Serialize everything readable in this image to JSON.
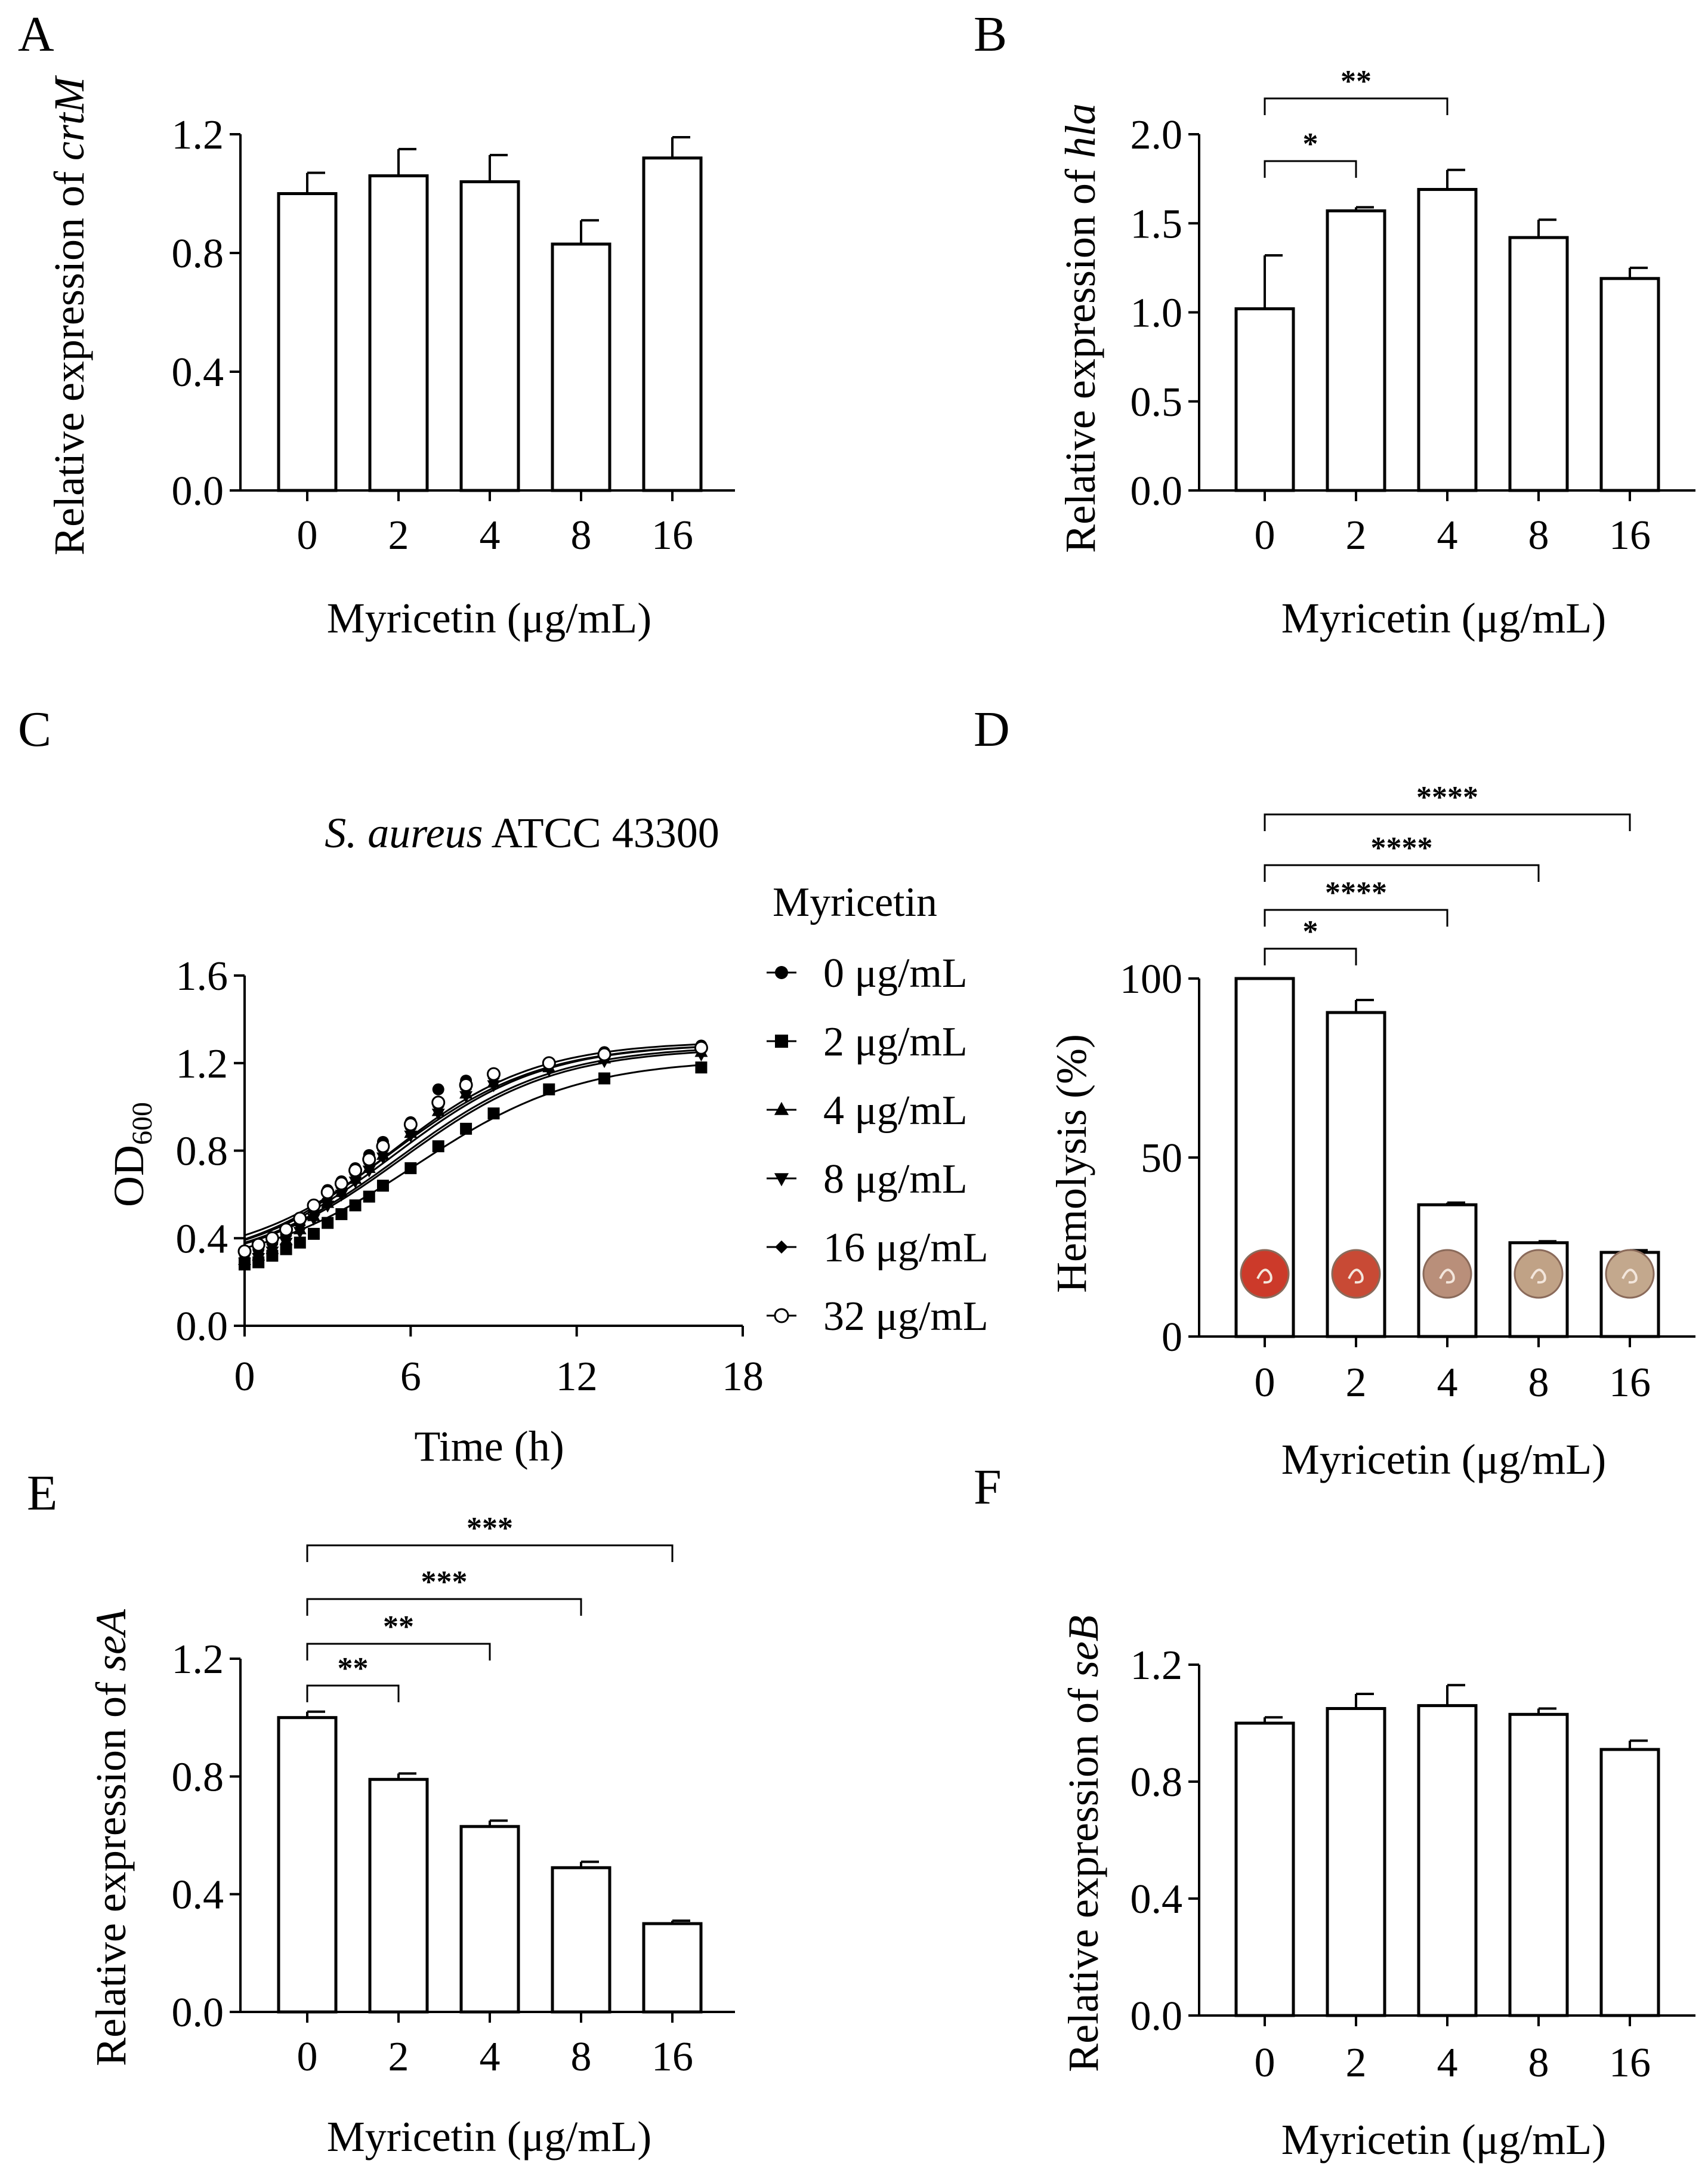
{
  "figure": {
    "panels": [
      "A",
      "B",
      "C",
      "D",
      "E",
      "F"
    ]
  },
  "chart_data": [
    {
      "panel": "A",
      "type": "bar",
      "categories": [
        "0",
        "2",
        "4",
        "8",
        "16"
      ],
      "values": [
        1.0,
        1.06,
        1.04,
        0.83,
        1.12
      ],
      "errors": [
        0.07,
        0.09,
        0.09,
        0.08,
        0.07
      ],
      "ylim": [
        0,
        1.2
      ],
      "yticks": [
        "0.0",
        "0.4",
        "0.8",
        "1.2"
      ],
      "ylabel_prefix": "Relative expression of ",
      "ylabel_gene": "crtM",
      "xlabel": "Myricetin (μg/mL)",
      "significance": []
    },
    {
      "panel": "B",
      "type": "bar",
      "categories": [
        "0",
        "2",
        "4",
        "8",
        "16"
      ],
      "values": [
        1.02,
        1.57,
        1.69,
        1.42,
        1.19
      ],
      "errors": [
        0.3,
        0.02,
        0.11,
        0.1,
        0.06
      ],
      "ylim": [
        0,
        2.0
      ],
      "yticks": [
        "0.0",
        "0.5",
        "1.0",
        "1.5",
        "2.0"
      ],
      "ylabel_prefix": "Relative expression of ",
      "ylabel_gene": "hla",
      "xlabel": "Myricetin (μg/mL)",
      "significance": [
        {
          "from": 0,
          "to": 1,
          "label": "*"
        },
        {
          "from": 0,
          "to": 2,
          "label": "**"
        }
      ]
    },
    {
      "panel": "C",
      "type": "scatter",
      "title_italic": "S. aureus",
      "title_rest": " ATCC 43300",
      "xlabel": "Time (h)",
      "ylabel_main": "OD",
      "ylabel_sub": "600",
      "xlim": [
        0,
        18
      ],
      "ylim": [
        0,
        1.6
      ],
      "xticks": [
        "0",
        "6",
        "12",
        "18"
      ],
      "yticks": [
        "0.0",
        "0.4",
        "0.8",
        "1.2",
        "1.6"
      ],
      "legend_title": "Myricetin",
      "x": [
        0,
        0.5,
        1,
        1.5,
        2,
        2.5,
        3,
        3.5,
        4,
        4.5,
        5,
        6,
        7,
        8,
        9,
        11,
        13,
        16.5
      ],
      "series": [
        {
          "name": "0 μg/mL",
          "marker": "circle",
          "values": [
            0.33,
            0.35,
            0.38,
            0.42,
            0.48,
            0.55,
            0.62,
            0.66,
            0.72,
            0.78,
            0.84,
            0.93,
            1.08,
            1.12,
            1.15,
            1.2,
            1.25,
            1.28
          ]
        },
        {
          "name": "2 μg/mL",
          "marker": "square",
          "values": [
            0.28,
            0.29,
            0.32,
            0.35,
            0.38,
            0.42,
            0.47,
            0.51,
            0.55,
            0.59,
            0.64,
            0.72,
            0.82,
            0.9,
            0.97,
            1.08,
            1.13,
            1.18
          ]
        },
        {
          "name": "4 μg/mL",
          "marker": "triangle-up",
          "values": [
            0.3,
            0.32,
            0.35,
            0.39,
            0.44,
            0.5,
            0.56,
            0.61,
            0.67,
            0.72,
            0.78,
            0.88,
            0.98,
            1.06,
            1.11,
            1.18,
            1.22,
            1.25
          ]
        },
        {
          "name": "8 μg/mL",
          "marker": "triangle-down",
          "values": [
            0.29,
            0.31,
            0.34,
            0.38,
            0.43,
            0.49,
            0.55,
            0.6,
            0.66,
            0.71,
            0.77,
            0.87,
            0.97,
            1.05,
            1.1,
            1.17,
            1.21,
            1.24
          ]
        },
        {
          "name": "16 μg/mL",
          "marker": "diamond",
          "values": [
            0.31,
            0.33,
            0.37,
            0.41,
            0.46,
            0.52,
            0.58,
            0.63,
            0.69,
            0.74,
            0.8,
            0.9,
            1.0,
            1.08,
            1.13,
            1.19,
            1.23,
            1.27
          ]
        },
        {
          "name": "32 μg/mL",
          "marker": "circle-open",
          "values": [
            0.34,
            0.37,
            0.4,
            0.44,
            0.49,
            0.55,
            0.61,
            0.65,
            0.71,
            0.76,
            0.82,
            0.92,
            1.02,
            1.1,
            1.15,
            1.2,
            1.24,
            1.27
          ]
        }
      ]
    },
    {
      "panel": "D",
      "type": "bar",
      "categories": [
        "0",
        "2",
        "4",
        "8",
        "16"
      ],
      "values": [
        100,
        90.5,
        36.8,
        26.2,
        23.5
      ],
      "errors": [
        0,
        3.5,
        0.6,
        0.4,
        0.6
      ],
      "ylim": [
        0,
        100
      ],
      "yticks": [
        "0",
        "50",
        "100"
      ],
      "ylabel": "Hemolysis (%)",
      "xlabel": "Myricetin (μg/mL)",
      "well_colors": [
        "#cc3a2a",
        "#c84a35",
        "#b98f7a",
        "#c0a286",
        "#c3a88d"
      ],
      "significance": [
        {
          "from": 0,
          "to": 1,
          "label": "*"
        },
        {
          "from": 0,
          "to": 2,
          "label": "****"
        },
        {
          "from": 0,
          "to": 3,
          "label": "****"
        },
        {
          "from": 0,
          "to": 4,
          "label": "****"
        }
      ]
    },
    {
      "panel": "E",
      "type": "bar",
      "categories": [
        "0",
        "2",
        "4",
        "8",
        "16"
      ],
      "values": [
        1.0,
        0.79,
        0.63,
        0.49,
        0.3
      ],
      "errors": [
        0.02,
        0.02,
        0.02,
        0.02,
        0.01
      ],
      "ylim": [
        0,
        1.2
      ],
      "yticks": [
        "0.0",
        "0.4",
        "0.8",
        "1.2"
      ],
      "ylabel_prefix": "Relative expression of ",
      "ylabel_gene": "seA",
      "xlabel": "Myricetin (μg/mL)",
      "significance": [
        {
          "from": 0,
          "to": 1,
          "label": "**"
        },
        {
          "from": 0,
          "to": 2,
          "label": "**"
        },
        {
          "from": 0,
          "to": 3,
          "label": "***"
        },
        {
          "from": 0,
          "to": 4,
          "label": "***"
        }
      ]
    },
    {
      "panel": "F",
      "type": "bar",
      "categories": [
        "0",
        "2",
        "4",
        "8",
        "16"
      ],
      "values": [
        1.0,
        1.05,
        1.06,
        1.03,
        0.91
      ],
      "errors": [
        0.02,
        0.05,
        0.07,
        0.02,
        0.03
      ],
      "ylim": [
        0,
        1.2
      ],
      "yticks": [
        "0.0",
        "0.4",
        "0.8",
        "1.2"
      ],
      "ylabel_prefix": "Relative expression of ",
      "ylabel_gene": "seB",
      "xlabel": "Myricetin (μg/mL)",
      "significance": []
    }
  ]
}
